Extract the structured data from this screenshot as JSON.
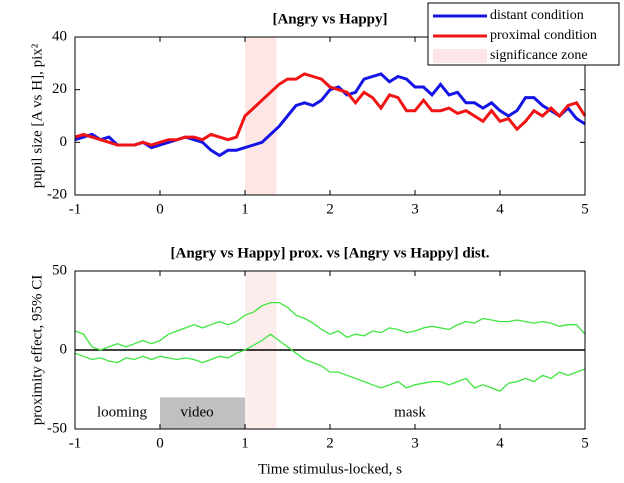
{
  "chart_data": [
    {
      "type": "line",
      "title": "[Angry vs Happy]",
      "ylabel": "pupil size [A vs H], pix²",
      "x": [
        -1,
        -0.9,
        -0.8,
        -0.7,
        -0.6,
        -0.5,
        -0.4,
        -0.3,
        -0.2,
        -0.1,
        0,
        0.1,
        0.2,
        0.3,
        0.4,
        0.5,
        0.6,
        0.7,
        0.8,
        0.9,
        1,
        1.1,
        1.2,
        1.3,
        1.4,
        1.5,
        1.6,
        1.7,
        1.8,
        1.9,
        2,
        2.1,
        2.2,
        2.3,
        2.4,
        2.5,
        2.6,
        2.7,
        2.8,
        2.9,
        3,
        3.1,
        3.2,
        3.3,
        3.4,
        3.5,
        3.6,
        3.7,
        3.8,
        3.9,
        4,
        4.1,
        4.2,
        4.3,
        4.4,
        4.5,
        4.6,
        4.7,
        4.8,
        4.9,
        5
      ],
      "series": [
        {
          "name": "distant condition",
          "color": "#1414e6",
          "values": [
            1,
            2,
            3,
            1,
            2,
            -1,
            -1,
            -1,
            0,
            -2,
            -1,
            0,
            1,
            2,
            1,
            0,
            -3,
            -5,
            -3,
            -3,
            -2,
            -1,
            0,
            3,
            6,
            10,
            14,
            15,
            14,
            16,
            20,
            21,
            18,
            19,
            24,
            25,
            26,
            23,
            25,
            24,
            21,
            21,
            18,
            22,
            18,
            19,
            15,
            15,
            13,
            15,
            12,
            10,
            12,
            17,
            17,
            14,
            12,
            10,
            13,
            9,
            7
          ]
        },
        {
          "name": "proximal condition",
          "color": "#f01414",
          "values": [
            2,
            3,
            2,
            1,
            0,
            -1,
            -1,
            -1,
            0,
            -1,
            0,
            1,
            1,
            2,
            2,
            1,
            3,
            2,
            1,
            2,
            10,
            13,
            16,
            19,
            22,
            24,
            24,
            26,
            25,
            24,
            21,
            20,
            19,
            15,
            19,
            17,
            13,
            18,
            17,
            12,
            12,
            16,
            12,
            12,
            13,
            11,
            12,
            10,
            8,
            12,
            8,
            9,
            5,
            8,
            12,
            10,
            13,
            10,
            14,
            15,
            10
          ]
        }
      ],
      "shade_x": [
        1,
        1.37
      ],
      "shade_label": "significance zone",
      "shade_color": "#fde6e6",
      "legend": "upper right",
      "xlim": [
        -1,
        5
      ],
      "xticks": [
        -1,
        0,
        1,
        2,
        3,
        4,
        5
      ],
      "ylim": [
        -20,
        40
      ],
      "yticks": [
        -20,
        0,
        20,
        40
      ]
    },
    {
      "type": "band",
      "title": "[Angry vs Happy] prox. vs [Angry vs Happy] dist.",
      "ylabel": "proximity effect, 95% CI",
      "xlabel": "Time stimulus-locked, s",
      "x": [
        -1,
        -0.9,
        -0.8,
        -0.7,
        -0.6,
        -0.5,
        -0.4,
        -0.3,
        -0.2,
        -0.1,
        0,
        0.1,
        0.2,
        0.3,
        0.4,
        0.5,
        0.6,
        0.7,
        0.8,
        0.9,
        1,
        1.1,
        1.2,
        1.3,
        1.4,
        1.5,
        1.6,
        1.7,
        1.8,
        1.9,
        2,
        2.1,
        2.2,
        2.3,
        2.4,
        2.5,
        2.6,
        2.7,
        2.8,
        2.9,
        3,
        3.1,
        3.2,
        3.3,
        3.4,
        3.5,
        3.6,
        3.7,
        3.8,
        3.9,
        4,
        4.1,
        4.2,
        4.3,
        4.4,
        4.5,
        4.6,
        4.7,
        4.8,
        4.9,
        5
      ],
      "series": [
        {
          "color": "#3ee63e",
          "values": [
            12,
            10,
            2,
            0,
            2,
            4,
            2,
            4,
            6,
            4,
            6,
            10,
            12,
            14,
            16,
            14,
            16,
            18,
            16,
            18,
            22,
            24,
            28,
            30,
            30,
            27,
            22,
            20,
            17,
            13,
            10,
            12,
            8,
            10,
            9,
            12,
            11,
            14,
            13,
            11,
            12,
            14,
            15,
            14,
            13,
            16,
            18,
            17,
            20,
            19,
            18,
            18,
            19,
            18,
            17,
            18,
            17,
            15,
            16,
            16,
            10
          ]
        },
        {
          "color": "#3ee63e",
          "values": [
            -2,
            -4,
            -6,
            -5,
            -7,
            -8,
            -5,
            -6,
            -4,
            -6,
            -4,
            -5,
            -6,
            -5,
            -6,
            -8,
            -6,
            -4,
            -5,
            -2,
            0,
            3,
            6,
            10,
            6,
            2,
            -2,
            -6,
            -8,
            -10,
            -14,
            -14,
            -16,
            -18,
            -20,
            -22,
            -24,
            -22,
            -20,
            -24,
            -22,
            -21,
            -20,
            -20,
            -22,
            -20,
            -18,
            -24,
            -22,
            -24,
            -26,
            -21,
            -20,
            -18,
            -20,
            -16,
            -18,
            -14,
            -16,
            -14,
            -12
          ]
        }
      ],
      "shade_x": [
        1,
        1.37
      ],
      "shade_color": "#fdecec",
      "hline": 0,
      "region": {
        "x": [
          0,
          1
        ],
        "y": [
          -50,
          -30
        ],
        "color": "#c0c0c0"
      },
      "annotations": [
        "looming",
        "video",
        "mask"
      ],
      "xlim": [
        -1,
        5
      ],
      "xticks": [
        -1,
        0,
        1,
        2,
        3,
        4,
        5
      ],
      "ylim": [
        -50,
        50
      ],
      "yticks": [
        -50,
        0,
        50
      ]
    }
  ]
}
